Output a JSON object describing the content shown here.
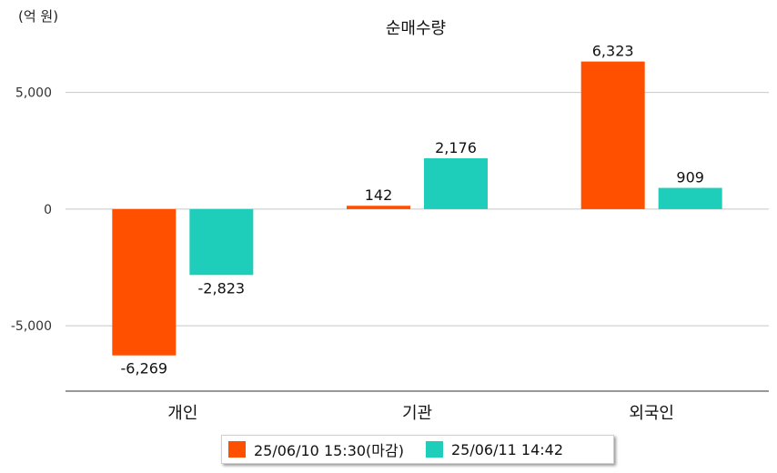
{
  "chart_data": {
    "type": "bar",
    "title": "순매수량",
    "unit_label": "(억 원)",
    "categories": [
      "개인",
      "기관",
      "외국인"
    ],
    "series": [
      {
        "name": "25/06/10 15:30(마감)",
        "color": "#ff5000",
        "values": [
          -6269,
          142,
          6323
        ]
      },
      {
        "name": "25/06/11 14:42",
        "color": "#1ecdba",
        "values": [
          -2823,
          2176,
          909
        ]
      }
    ],
    "data_labels": [
      [
        "-6,269",
        "142",
        "6,323"
      ],
      [
        "-2,823",
        "2,176",
        "909"
      ]
    ],
    "yticks": [
      5000,
      0,
      -5000
    ],
    "ytick_labels": [
      "5,000",
      "0",
      "-5,000"
    ],
    "ylim": [
      -7800,
      7400
    ],
    "grid": true,
    "legend_position": "bottom"
  }
}
